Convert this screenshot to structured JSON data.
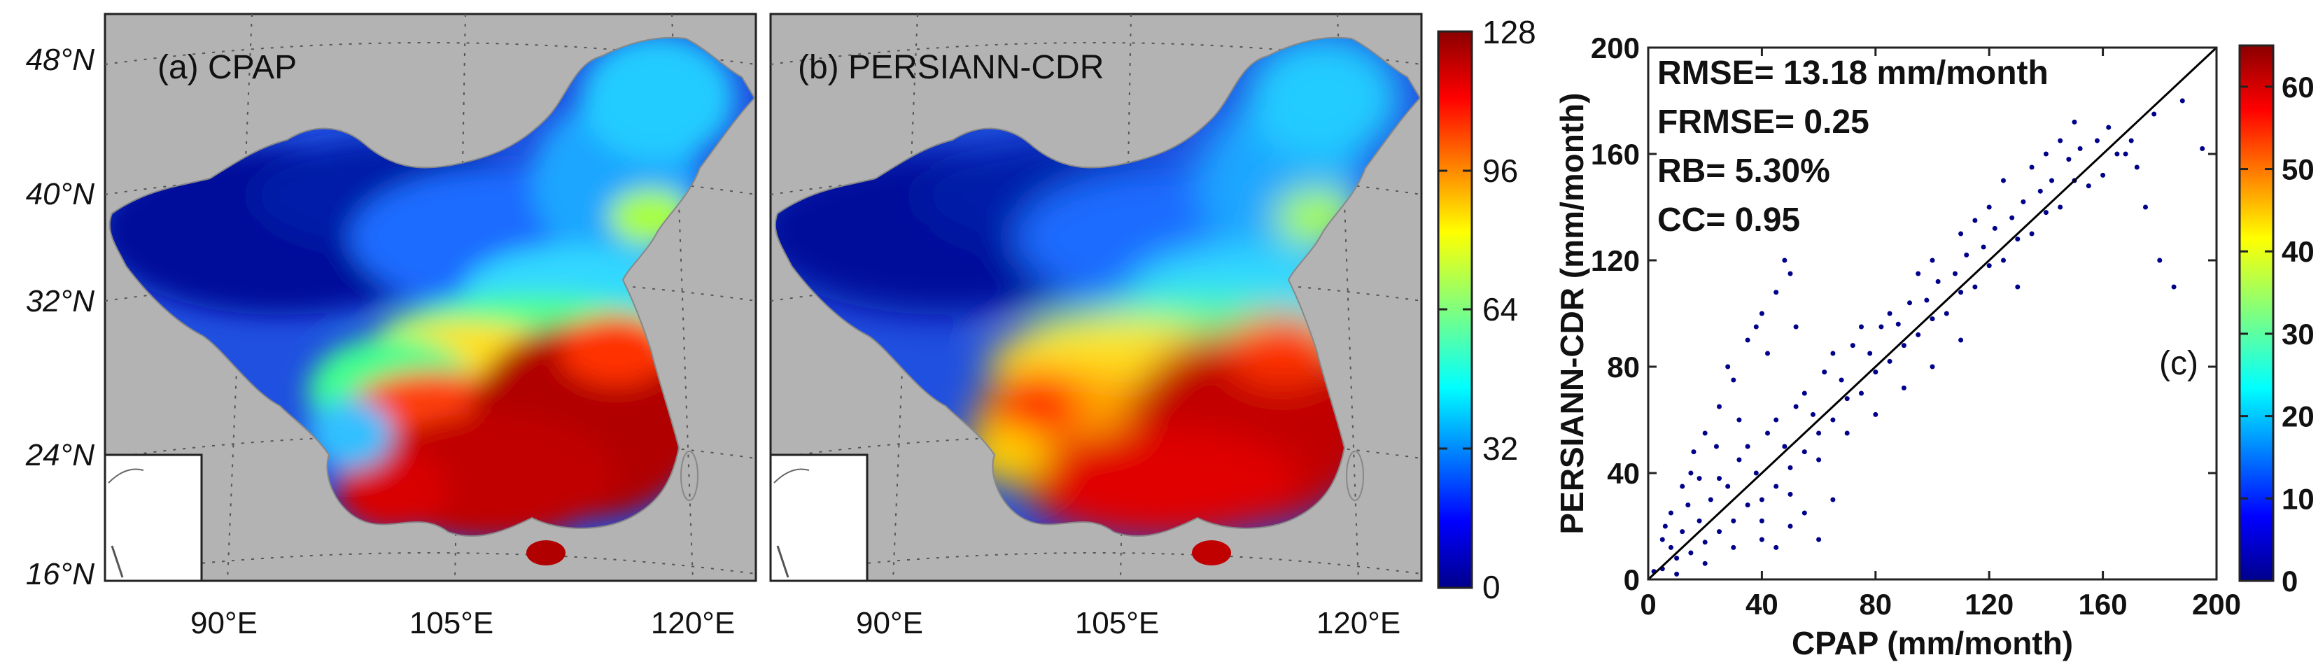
{
  "chart_data": [
    {
      "type": "heatmap",
      "panel_label": "(a) CPAP",
      "lat_ticks": [
        "48°N",
        "40°N",
        "32°N",
        "24°N",
        "16°N"
      ],
      "lon_ticks": [
        "90°E",
        "105°E",
        "120°E"
      ],
      "field_description_values": {
        "northwest_basin": 5,
        "tibet_plateau": 15,
        "north_china": 45,
        "northeast": 55,
        "southwest": 100,
        "southeast": 125,
        "hainan": 125
      }
    },
    {
      "type": "heatmap",
      "panel_label": "(b) PERSIANN-CDR",
      "lat_ticks": [
        "48°N",
        "40°N",
        "32°N",
        "24°N",
        "16°N"
      ],
      "lon_ticks": [
        "90°E",
        "105°E",
        "120°E"
      ],
      "field_description_values": {
        "northwest_basin": 5,
        "tibet_plateau": 20,
        "north_china": 45,
        "northeast": 55,
        "southwest": 100,
        "southeast": 120,
        "hainan": 125
      }
    },
    {
      "type": "colorbar",
      "range": [
        0,
        128
      ],
      "ticks": [
        "128",
        "96",
        "64",
        "32",
        "0"
      ]
    },
    {
      "type": "scatter",
      "panel_label": "(c)",
      "xlabel": "CPAP (mm/month)",
      "ylabel": "PERSIANN-CDR (mm/month)",
      "xlim": [
        0,
        200
      ],
      "ylim": [
        0,
        200
      ],
      "x_ticks": [
        "0",
        "40",
        "80",
        "120",
        "160",
        "200"
      ],
      "y_ticks": [
        "0",
        "40",
        "80",
        "120",
        "160",
        "200"
      ],
      "stats": [
        "RMSE= 13.18 mm/month",
        "FRMSE= 0.25",
        "RB= 5.30%",
        "CC= 0.95"
      ],
      "reference_line": [
        [
          0,
          0
        ],
        [
          200,
          200
        ]
      ],
      "point_color": "#00008b",
      "points": [
        [
          2,
          3
        ],
        [
          5,
          4
        ],
        [
          8,
          12
        ],
        [
          10,
          8
        ],
        [
          12,
          18
        ],
        [
          15,
          10
        ],
        [
          18,
          22
        ],
        [
          20,
          14
        ],
        [
          22,
          30
        ],
        [
          25,
          18
        ],
        [
          28,
          35
        ],
        [
          30,
          22
        ],
        [
          32,
          45
        ],
        [
          35,
          28
        ],
        [
          38,
          40
        ],
        [
          40,
          30
        ],
        [
          42,
          55
        ],
        [
          45,
          35
        ],
        [
          48,
          50
        ],
        [
          50,
          42
        ],
        [
          52,
          65
        ],
        [
          55,
          48
        ],
        [
          58,
          62
        ],
        [
          60,
          55
        ],
        [
          62,
          78
        ],
        [
          65,
          60
        ],
        [
          68,
          75
        ],
        [
          70,
          68
        ],
        [
          72,
          88
        ],
        [
          75,
          70
        ],
        [
          78,
          85
        ],
        [
          80,
          78
        ],
        [
          82,
          95
        ],
        [
          85,
          82
        ],
        [
          88,
          96
        ],
        [
          90,
          88
        ],
        [
          92,
          104
        ],
        [
          95,
          92
        ],
        [
          98,
          105
        ],
        [
          100,
          98
        ],
        [
          102,
          112
        ],
        [
          105,
          100
        ],
        [
          108,
          115
        ],
        [
          110,
          108
        ],
        [
          112,
          122
        ],
        [
          115,
          110
        ],
        [
          118,
          125
        ],
        [
          120,
          118
        ],
        [
          122,
          132
        ],
        [
          125,
          120
        ],
        [
          128,
          136
        ],
        [
          130,
          128
        ],
        [
          132,
          142
        ],
        [
          135,
          130
        ],
        [
          138,
          146
        ],
        [
          140,
          138
        ],
        [
          142,
          150
        ],
        [
          145,
          140
        ],
        [
          148,
          158
        ],
        [
          150,
          150
        ],
        [
          152,
          162
        ],
        [
          155,
          148
        ],
        [
          158,
          165
        ],
        [
          160,
          152
        ],
        [
          162,
          170
        ],
        [
          165,
          160
        ],
        [
          168,
          160
        ],
        [
          170,
          165
        ],
        [
          15,
          40
        ],
        [
          20,
          55
        ],
        [
          25,
          65
        ],
        [
          30,
          75
        ],
        [
          35,
          90
        ],
        [
          40,
          100
        ],
        [
          45,
          108
        ],
        [
          50,
          115
        ],
        [
          28,
          80
        ],
        [
          38,
          95
        ],
        [
          48,
          120
        ],
        [
          32,
          60
        ],
        [
          42,
          85
        ],
        [
          52,
          95
        ],
        [
          40,
          15
        ],
        [
          55,
          25
        ],
        [
          60,
          15
        ],
        [
          65,
          30
        ],
        [
          45,
          12
        ],
        [
          50,
          20
        ],
        [
          175,
          140
        ],
        [
          180,
          120
        ],
        [
          188,
          180
        ],
        [
          195,
          162
        ],
        [
          185,
          110
        ],
        [
          172,
          155
        ],
        [
          178,
          175
        ],
        [
          145,
          165
        ],
        [
          150,
          172
        ],
        [
          140,
          160
        ],
        [
          130,
          110
        ],
        [
          110,
          90
        ],
        [
          100,
          80
        ],
        [
          90,
          72
        ],
        [
          80,
          62
        ],
        [
          70,
          55
        ],
        [
          60,
          45
        ],
        [
          50,
          32
        ],
        [
          40,
          22
        ],
        [
          30,
          12
        ],
        [
          20,
          6
        ],
        [
          10,
          2
        ],
        [
          5,
          15
        ],
        [
          8,
          25
        ],
        [
          12,
          35
        ],
        [
          16,
          48
        ],
        [
          6,
          20
        ],
        [
          14,
          28
        ],
        [
          18,
          38
        ],
        [
          24,
          50
        ],
        [
          100,
          120
        ],
        [
          110,
          130
        ],
        [
          120,
          140
        ],
        [
          125,
          150
        ],
        [
          135,
          155
        ],
        [
          115,
          135
        ],
        [
          95,
          115
        ],
        [
          85,
          100
        ],
        [
          75,
          95
        ],
        [
          65,
          85
        ],
        [
          55,
          70
        ],
        [
          45,
          60
        ],
        [
          35,
          50
        ],
        [
          25,
          38
        ]
      ]
    },
    {
      "type": "colorbar",
      "range": [
        0,
        65
      ],
      "ticks": [
        "60",
        "50",
        "40",
        "30",
        "20",
        "10",
        "0"
      ]
    }
  ]
}
